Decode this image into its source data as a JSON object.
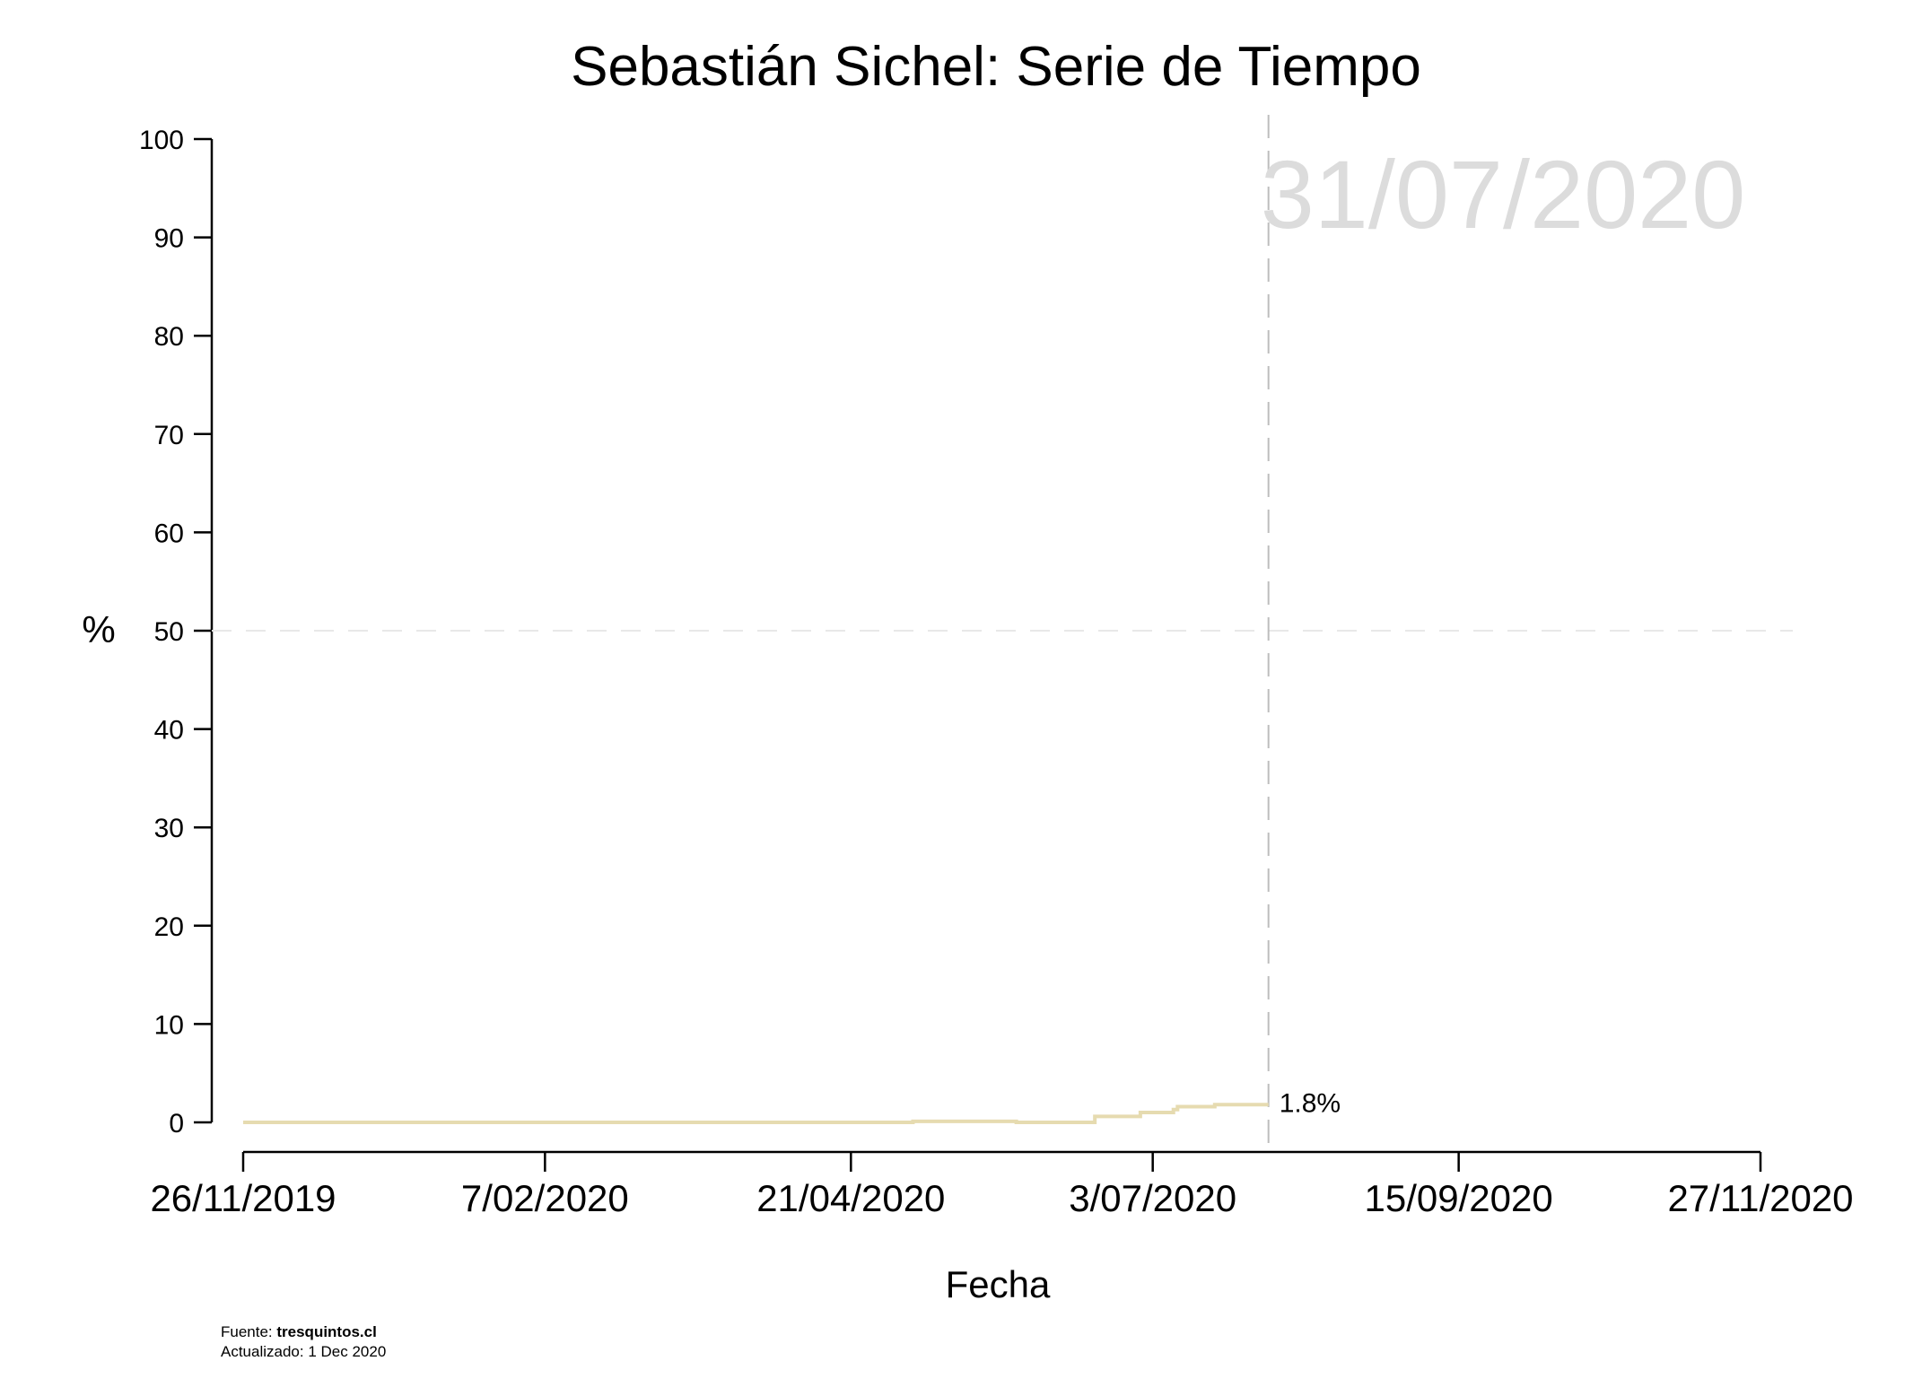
{
  "chart_data": {
    "type": "line",
    "title": "Sebastián Sichel: Serie de Tiempo",
    "xlabel": "Fecha",
    "ylabel": "%",
    "ylim": [
      0,
      100
    ],
    "yticks": [
      0,
      10,
      20,
      30,
      40,
      50,
      60,
      70,
      80,
      90,
      100
    ],
    "xlim": [
      "2019-11-26",
      "2020-11-27"
    ],
    "xticks": [
      "2019-11-26",
      "2020-02-07",
      "2020-04-21",
      "2020-07-03",
      "2020-09-15",
      "2020-11-27"
    ],
    "xtick_labels": [
      "26/11/2019",
      "7/02/2020",
      "21/04/2020",
      "3/07/2020",
      "15/09/2020",
      "27/11/2020"
    ],
    "reference_hline": 50,
    "current_date": "2020-07-31",
    "current_date_label": "31/07/2020",
    "end_label": "1.8%",
    "series": [
      {
        "color": "#e6dbb0",
        "step": true,
        "points": [
          [
            "2019-11-26",
            0.0
          ],
          [
            "2020-05-05",
            0.0
          ],
          [
            "2020-05-06",
            0.1
          ],
          [
            "2020-05-30",
            0.1
          ],
          [
            "2020-05-31",
            0.0
          ],
          [
            "2020-06-18",
            0.0
          ],
          [
            "2020-06-19",
            0.6
          ],
          [
            "2020-06-29",
            0.6
          ],
          [
            "2020-06-30",
            1.0
          ],
          [
            "2020-07-07",
            1.0
          ],
          [
            "2020-07-08",
            1.3
          ],
          [
            "2020-07-09",
            1.6
          ],
          [
            "2020-07-17",
            1.6
          ],
          [
            "2020-07-18",
            1.8
          ],
          [
            "2020-07-31",
            1.8
          ]
        ]
      }
    ]
  },
  "footer": {
    "source_prefix": "Fuente: ",
    "source_name": "tresquintos.cl",
    "updated": "Actualizado: 1 Dec 2020"
  }
}
